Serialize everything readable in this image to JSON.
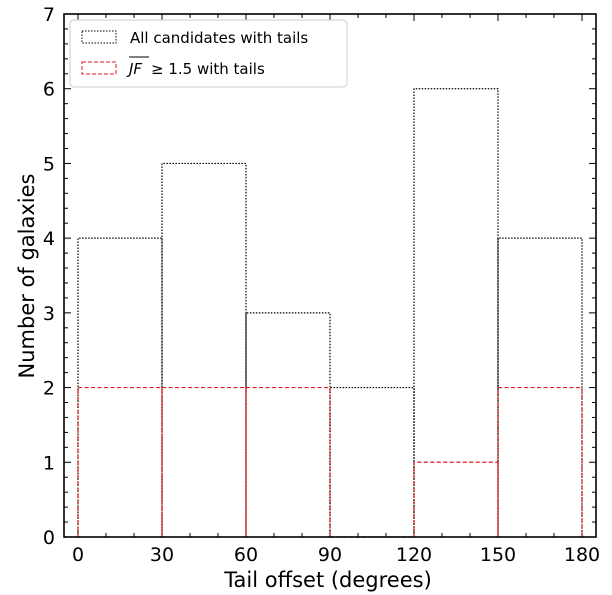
{
  "chart_data": {
    "type": "bar",
    "histogram": true,
    "xlabel": "Tail offset (degrees)",
    "ylabel": "Number of galaxies",
    "xlim": [
      -5,
      185
    ],
    "ylim": [
      0,
      7
    ],
    "bin_edges": [
      0,
      30,
      60,
      90,
      120,
      150,
      180
    ],
    "x_ticks": [
      0,
      30,
      60,
      90,
      120,
      150,
      180
    ],
    "x_tick_labels": [
      "0",
      "30",
      "60",
      "90",
      "120",
      "150",
      "180"
    ],
    "y_ticks": [
      0,
      1,
      2,
      3,
      4,
      5,
      6,
      7
    ],
    "y_tick_labels": [
      "0",
      "1",
      "2",
      "3",
      "4",
      "5",
      "6",
      "7"
    ],
    "series": [
      {
        "name": "All candidates with tails",
        "values": [
          4,
          5,
          3,
          2,
          6,
          4
        ],
        "color": "#000000",
        "linestyle": "dotted"
      },
      {
        "name": "≥ 1.5 with tails",
        "name_prefix": "JF",
        "values": [
          2,
          2,
          2,
          0,
          1,
          2
        ],
        "color": "#e41a1c",
        "linestyle": "dashed"
      }
    ],
    "legend_position": "top-left",
    "grid": false
  }
}
